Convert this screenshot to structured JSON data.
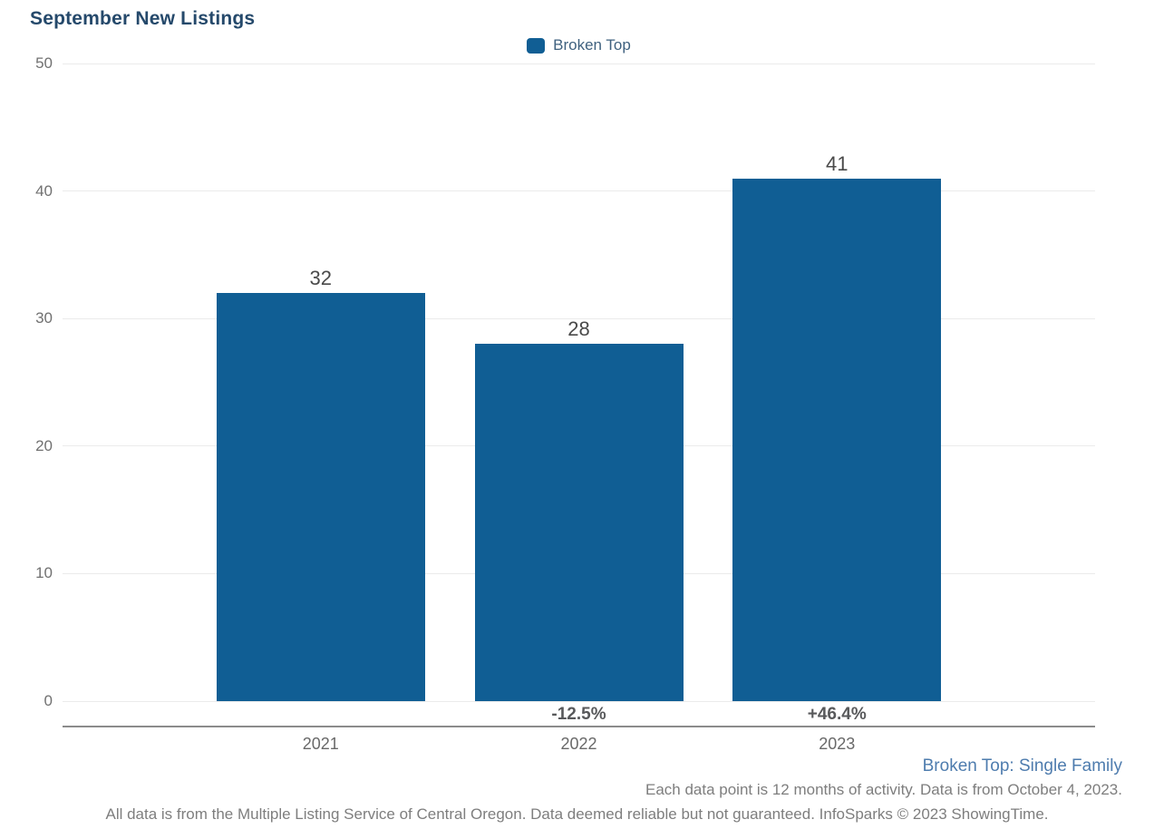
{
  "chart_data": {
    "type": "bar",
    "title": "September New Listings",
    "categories": [
      "2021",
      "2022",
      "2023"
    ],
    "series": [
      {
        "name": "Broken Top",
        "values": [
          32,
          28,
          41
        ]
      }
    ],
    "bar_value_labels": [
      "32",
      "28",
      "41"
    ],
    "pct_change_labels": [
      "",
      "-12.5%",
      "+46.4%"
    ],
    "y_ticks": [
      0,
      10,
      20,
      30,
      40,
      50
    ],
    "ylim": [
      0,
      50
    ],
    "xlabel": "",
    "ylabel": "",
    "grid": "horizontal",
    "legend_position": "top-center",
    "colors": {
      "bar": "#105e94",
      "title_text": "#25496b",
      "legend_text": "#3f617f",
      "series_note_text": "#4e7cae",
      "gridline": "#ebebeb",
      "axis_line": "#8b8b8b"
    }
  },
  "footer": {
    "series_note": "Broken Top: Single Family",
    "activity_note": "Each data point is 12 months of activity. Data is from October 4, 2023.",
    "disclaimer": "All data is from the Multiple Listing Service of Central Oregon. Data deemed reliable but not guaranteed. InfoSparks © 2023 ShowingTime."
  }
}
